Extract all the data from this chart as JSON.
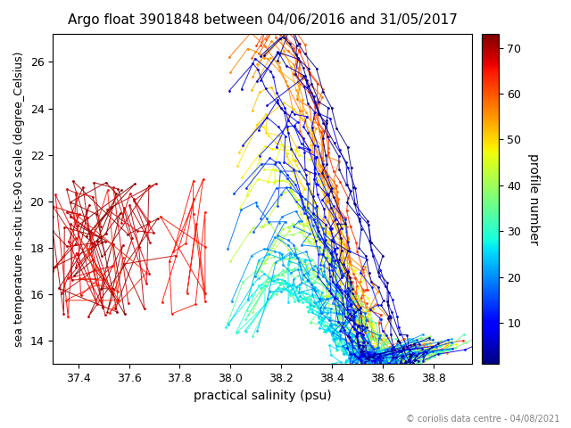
{
  "title": "Argo float 3901848 between 04/06/2016 and 31/05/2017",
  "xlabel": "practical salinity (psu)",
  "ylabel": "sea temperature in-situ its-90 scale (degree_Celsius)",
  "colorbar_label": "profile number",
  "xlim": [
    37.3,
    38.95
  ],
  "ylim": [
    13.0,
    27.2
  ],
  "xticks": [
    37.4,
    37.6,
    37.8,
    38.0,
    38.2,
    38.4,
    38.6,
    38.8
  ],
  "yticks": [
    14,
    16,
    18,
    20,
    22,
    24,
    26
  ],
  "cmap": "jet",
  "vmin": 1,
  "vmax": 73,
  "colorbar_ticks": [
    10,
    20,
    30,
    40,
    50,
    60,
    70
  ],
  "copyright_text": "© coriolis data centre - 04/08/2021",
  "n_profiles": 73,
  "seed": 42
}
